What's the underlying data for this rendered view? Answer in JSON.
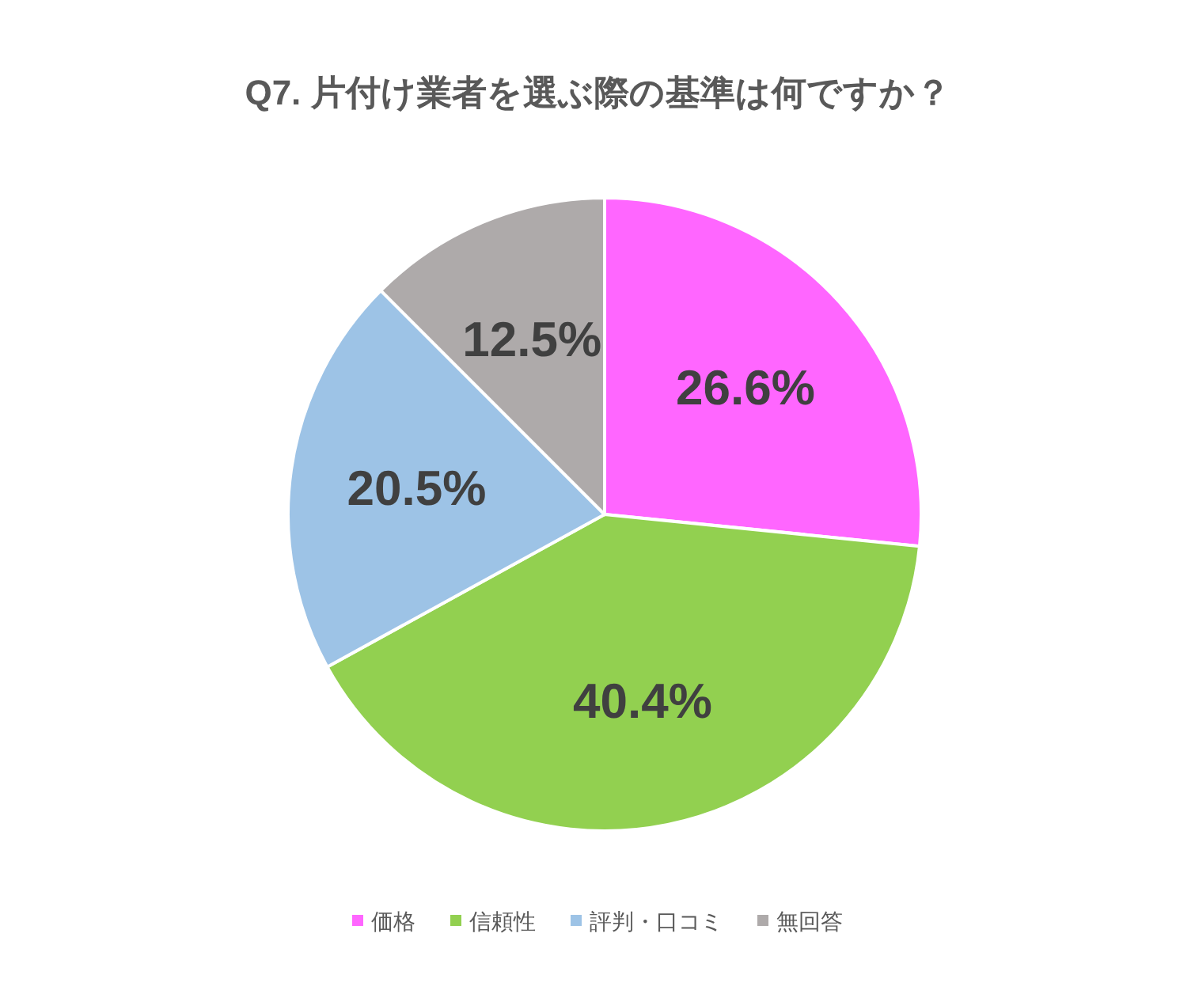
{
  "chart_data": {
    "type": "pie",
    "title": "Q7.  片付け業者を選ぶ際の基準は何ですか？",
    "categories": [
      "価格",
      "信頼性",
      "評判・口コミ",
      "無回答"
    ],
    "values": [
      26.6,
      40.4,
      20.5,
      12.5
    ],
    "colors": [
      "#ff66ff",
      "#92d050",
      "#9dc3e6",
      "#aeaaaa"
    ],
    "value_labels": [
      "26.6%",
      "40.4%",
      "20.5%",
      "12.5%"
    ],
    "legend": "bottom"
  }
}
